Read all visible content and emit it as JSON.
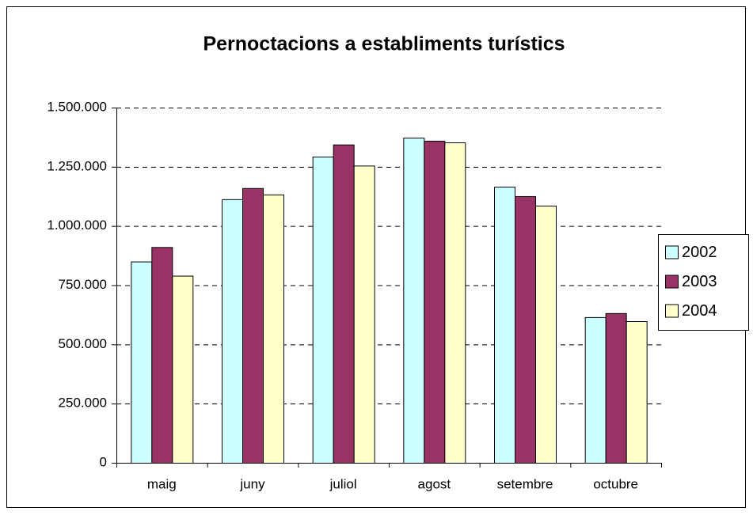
{
  "chart_data": {
    "type": "bar",
    "title": "Pernoctacions a establiments turístics",
    "categories": [
      "maig",
      "juny",
      "juliol",
      "agost",
      "setembre",
      "octubre"
    ],
    "series": [
      {
        "name": "2002",
        "color": "#ccffff",
        "values": [
          850000,
          1113000,
          1293000,
          1373000,
          1166000,
          615000
        ]
      },
      {
        "name": "2003",
        "color": "#993366",
        "values": [
          911000,
          1160000,
          1344000,
          1360000,
          1126000,
          632000
        ]
      },
      {
        "name": "2004",
        "color": "#ffffcc",
        "values": [
          790000,
          1133000,
          1255000,
          1353000,
          1086000,
          598000
        ]
      }
    ],
    "ylim": [
      0,
      1500000
    ],
    "yticks": [
      0,
      {
        "value": 250000,
        "label": "250.000"
      },
      {
        "value": 500000,
        "label": "500.000"
      },
      {
        "value": 750000,
        "label": "750.000"
      },
      {
        "value": 1000000,
        "label": "1.000.000"
      },
      {
        "value": 1250000,
        "label": "1.250.000"
      },
      {
        "value": 1500000,
        "label": "1.500.000"
      }
    ],
    "grid": true,
    "legend": "right"
  }
}
